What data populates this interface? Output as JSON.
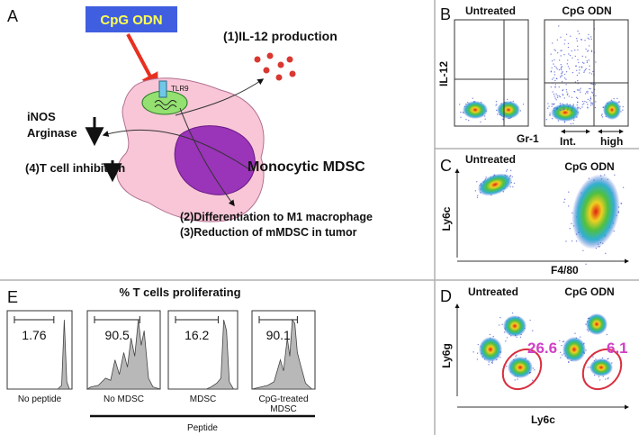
{
  "panelA": {
    "label": "A",
    "cpg": "CpG ODN",
    "tlr9": "TLR9",
    "il12": "(1)IL-12 production",
    "inos": "iNOS",
    "arginase": "Arginase",
    "tcell": "(4)T cell inhibition",
    "mdsc": "Monocytic MDSC",
    "differentiation": "(2)Differentiation to M1 macrophage",
    "reduction": "(3)Reduction of mMDSC in tumor"
  },
  "panelB": {
    "label": "B",
    "untreated": "Untreated",
    "cpg": "CpG ODN",
    "ylabel": "IL-12",
    "xlabel": "Gr-1",
    "int": "Int.",
    "high": "high"
  },
  "panelC": {
    "label": "C",
    "untreated": "Untreated",
    "cpg": "CpG ODN",
    "ylabel": "Ly6c",
    "xlabel": "F4/80"
  },
  "panelD": {
    "label": "D",
    "untreated": "Untreated",
    "cpg": "CpG ODN",
    "ylabel": "Ly6g",
    "xlabel": "Ly6c",
    "untreated_value": 26.6,
    "cpg_value": 6.1
  },
  "panelE": {
    "label": "E",
    "title": "% T cells proliferating",
    "group": "Peptide",
    "histograms": [
      {
        "value": 1.76,
        "label": "No peptide"
      },
      {
        "value": 90.5,
        "label": "No MDSC"
      },
      {
        "value": 16.2,
        "label": "MDSC"
      },
      {
        "value": 90.1,
        "label": "CpG-treated MDSC"
      }
    ]
  }
}
